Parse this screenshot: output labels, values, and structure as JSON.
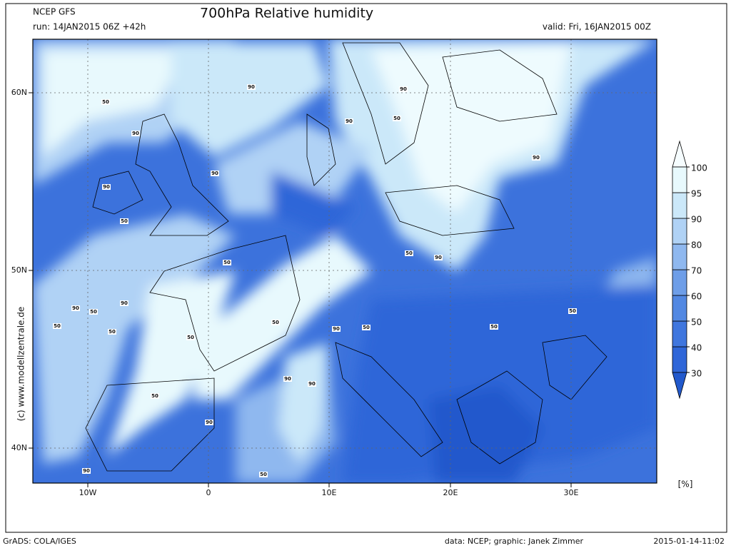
{
  "header": {
    "model": "NCEP GFS",
    "run": "run: 14JAN2015 06Z +42h",
    "title": "700hPa Relative humidity",
    "valid": "valid: Fri, 16JAN2015 00Z"
  },
  "map": {
    "lat_labels": [
      "60N",
      "50N",
      "40N"
    ],
    "lon_labels": [
      "10W",
      "0",
      "10E",
      "20E",
      "30E"
    ],
    "contour_labels": [
      50,
      90,
      90,
      90,
      50,
      90,
      90,
      90,
      50,
      90,
      50,
      50,
      90,
      90,
      50,
      90,
      50,
      50,
      50,
      50,
      90,
      50,
      50,
      50,
      90,
      90,
      50,
      90,
      90,
      50
    ]
  },
  "legend": {
    "unit": "[%]",
    "levels": [
      30,
      40,
      50,
      60,
      70,
      80,
      90,
      95,
      100
    ],
    "colors": [
      "#2f66d8",
      "#3f76de",
      "#5288e2",
      "#6e9ee8",
      "#8fb8ef",
      "#b0d2f5",
      "#cbe8f9",
      "#e8f9fd"
    ],
    "under_color": "#2259cc",
    "over_color": "#f6fdff"
  },
  "side_credit": "(c) www.modellzentrale.de",
  "footer": {
    "left": "GrADS: COLA/IGES",
    "center": "data: NCEP; graphic: Janek Zimmer",
    "right": "2015-01-14-11:02"
  }
}
